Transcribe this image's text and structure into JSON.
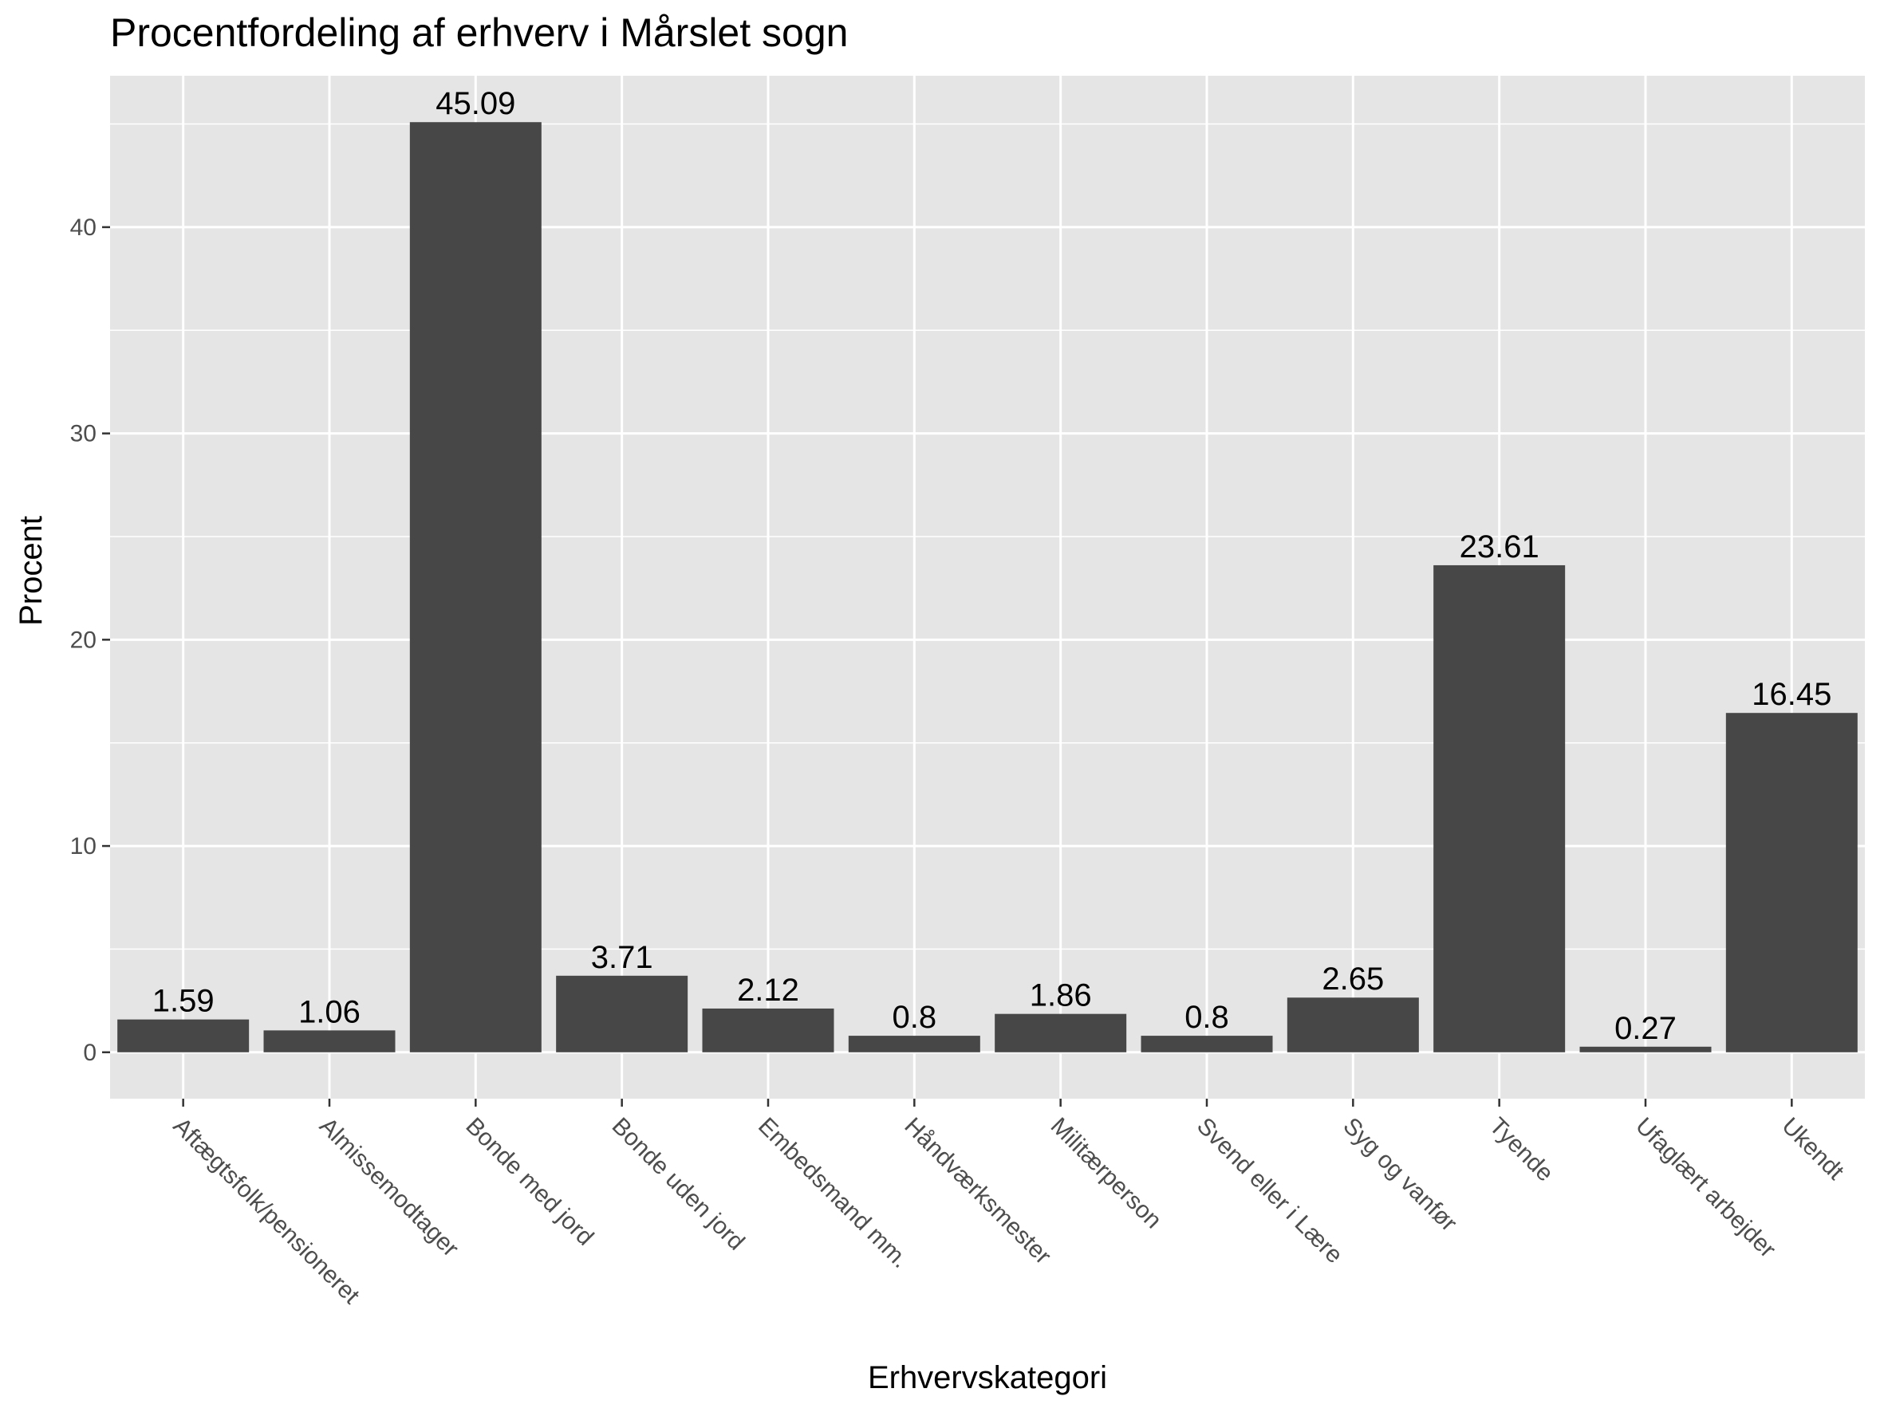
{
  "chart_data": {
    "type": "bar",
    "title": "Procentfordeling af erhverv i Mårslet sogn",
    "xlabel": "Erhvervskategori",
    "ylabel": "Procent",
    "categories": [
      "Aftægtsfolk/pensioneret",
      "Almissemodtager",
      "Bonde med jord",
      "Bonde uden jord",
      "Embedsmand mm.",
      "Håndværksmester",
      "Militærperson",
      "Svend eller i Lære",
      "Syg og vanfør",
      "Tyende",
      "Ufaglært arbejder",
      "Ukendt"
    ],
    "values": [
      1.59,
      1.06,
      45.09,
      3.71,
      2.12,
      0.8,
      1.86,
      0.8,
      2.65,
      23.61,
      0.27,
      16.45
    ],
    "data_labels": [
      "1.59",
      "1.06",
      "45.09",
      "3.71",
      "2.12",
      "0.8",
      "1.86",
      "0.8",
      "2.65",
      "23.61",
      "0.27",
      "16.45"
    ],
    "yticks": [
      0,
      10,
      20,
      30,
      40
    ],
    "ytick_labels": [
      "0",
      "10",
      "20",
      "30",
      "40"
    ],
    "ylim": [
      -2.25,
      47.34
    ],
    "grid": true,
    "colors": {
      "bar": "#474747",
      "panel": "#e5e5e5",
      "grid": "#ffffff",
      "tick_text": "#4d4d4d",
      "tick_mark": "#333333"
    }
  }
}
